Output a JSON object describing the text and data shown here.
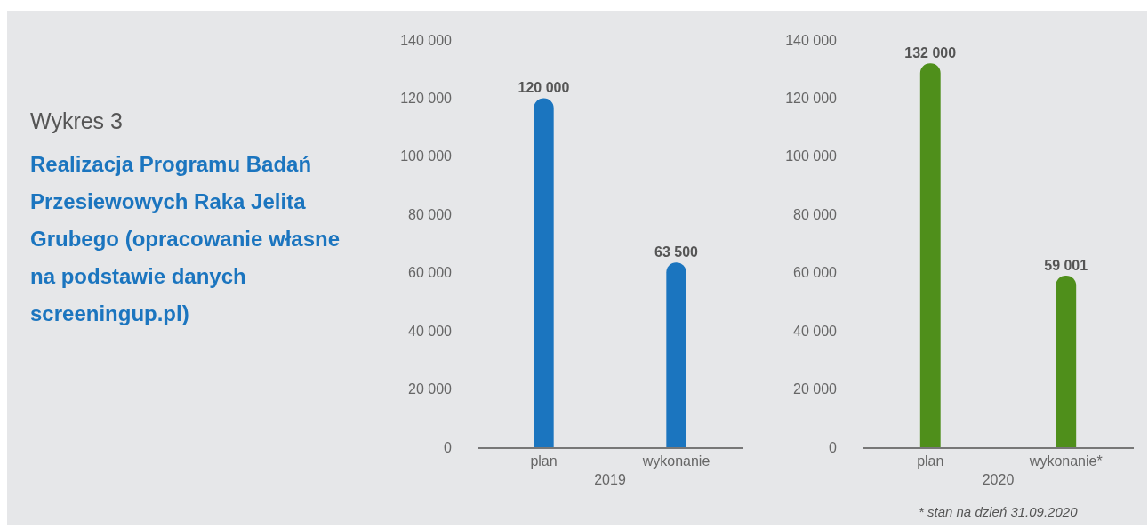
{
  "chart_data": [
    {
      "type": "other",
      "title": "Wykres 3",
      "subtitle": "Realizacja Programu Badań Przesiewowych Raka Jelita Grubego (opracowanie własne na podstawie danych screeningup.pl)"
    },
    {
      "type": "bar",
      "categories": [
        "plan",
        "wykonanie"
      ],
      "xlabel": "2019",
      "values": [
        120000,
        63500
      ],
      "value_labels": [
        "120 000",
        "63 500"
      ],
      "color": "#1b75bf",
      "ylim": [
        0,
        140000
      ],
      "yticks": [
        {
          "value": 0,
          "label": "0"
        },
        {
          "value": 20000,
          "label": "20 000"
        },
        {
          "value": 40000,
          "label": "40 000"
        },
        {
          "value": 60000,
          "label": "60 000"
        },
        {
          "value": 80000,
          "label": "80 000"
        },
        {
          "value": 100000,
          "label": "100 000"
        },
        {
          "value": 120000,
          "label": "120 000"
        },
        {
          "value": 140000,
          "label": "140 000"
        }
      ],
      "grid": false,
      "legend": false
    },
    {
      "type": "bar",
      "categories": [
        "plan",
        "wykonanie*"
      ],
      "xlabel": "2020",
      "values": [
        132000,
        59001
      ],
      "value_labels": [
        "132 000",
        "59 001"
      ],
      "color": "#4f8f1b",
      "ylim": [
        0,
        140000
      ],
      "yticks": [
        {
          "value": 0,
          "label": "0"
        },
        {
          "value": 20000,
          "label": "20 000"
        },
        {
          "value": 40000,
          "label": "40 000"
        },
        {
          "value": 60000,
          "label": "60 000"
        },
        {
          "value": 80000,
          "label": "80 000"
        },
        {
          "value": 100000,
          "label": "100 000"
        },
        {
          "value": 120000,
          "label": "120 000"
        },
        {
          "value": 140000,
          "label": "140 000"
        }
      ],
      "grid": false,
      "legend": false,
      "annotations": [
        "* stan na dzień 31.09.2020"
      ]
    }
  ]
}
